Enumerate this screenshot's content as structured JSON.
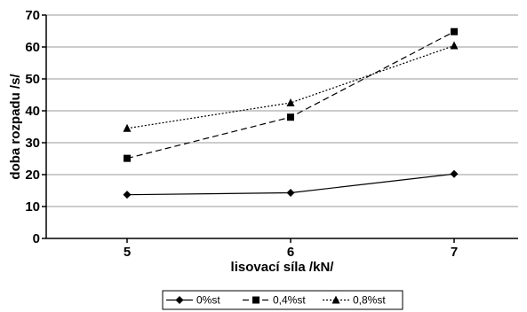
{
  "chart_data": {
    "type": "line",
    "title": "",
    "xlabel": "lisovací síla /kN/",
    "ylabel": "doba rozpadu /s/",
    "categories": [
      "5",
      "6",
      "7"
    ],
    "ylim": [
      0,
      70
    ],
    "yticks": [
      "0",
      "10",
      "20",
      "30",
      "40",
      "50",
      "60",
      "70"
    ],
    "grid": "horizontal",
    "legend_position": "bottom",
    "series": [
      {
        "name": "0%st",
        "values": [
          13.7,
          14.3,
          20.2
        ],
        "marker": "diamond",
        "dash": "solid",
        "color": "#000000"
      },
      {
        "name": "0,4%st",
        "values": [
          25.1,
          38.0,
          64.8
        ],
        "marker": "square",
        "dash": "dashed",
        "color": "#000000"
      },
      {
        "name": "0,8%st",
        "values": [
          34.5,
          42.5,
          60.4
        ],
        "marker": "triangle",
        "dash": "dotted",
        "color": "#000000"
      }
    ]
  }
}
